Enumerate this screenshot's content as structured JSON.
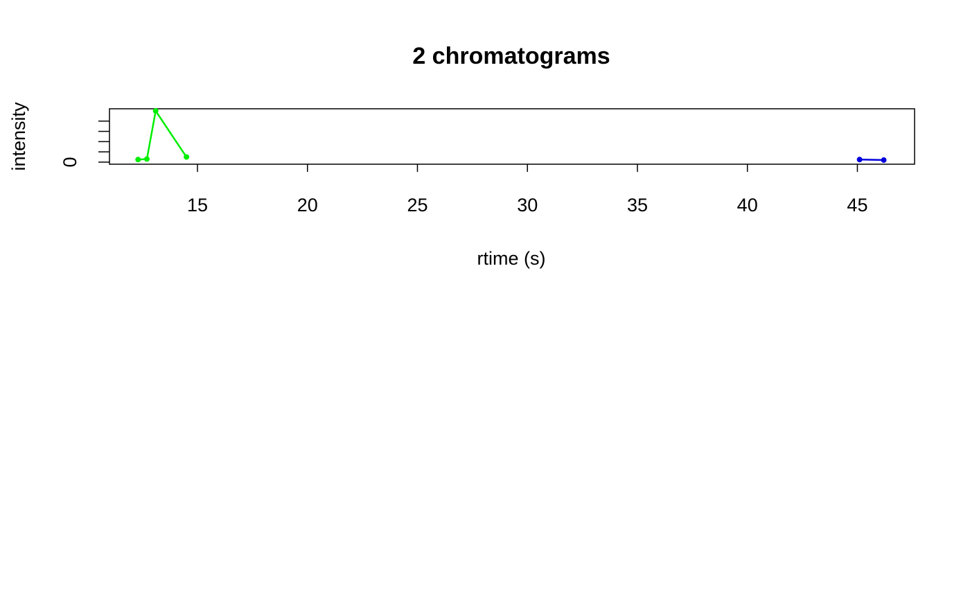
{
  "chart_data": {
    "type": "line",
    "title": "2 chromatograms",
    "xlabel": "rtime (s)",
    "ylabel": "intensity",
    "xlim": [
      11.0,
      47.6
    ],
    "ylim": [
      0,
      100
    ],
    "x_ticks": [
      15,
      20,
      25,
      30,
      35,
      40,
      45
    ],
    "x_tick_labels": [
      "15",
      "20",
      "25",
      "30",
      "35",
      "40",
      "45"
    ],
    "y_ticks": [
      0,
      20,
      40,
      60,
      80
    ],
    "y_tick_labels": [
      "0",
      "",
      "",
      "",
      ""
    ],
    "grid": false,
    "series": [
      {
        "color": "#00ee00",
        "x": [
          12.3,
          12.7,
          13.1,
          14.5
        ],
        "y": [
          5,
          6,
          100,
          10
        ]
      },
      {
        "color": "#0000dd",
        "x": [
          45.1,
          46.2
        ],
        "y": [
          5,
          4
        ]
      }
    ]
  }
}
